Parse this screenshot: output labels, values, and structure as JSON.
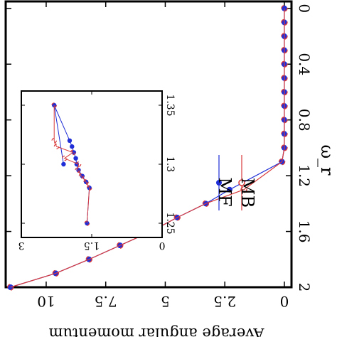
{
  "chart_data": [
    {
      "type": "scatter",
      "title": "",
      "xlabel": "ω_r",
      "ylabel": "Average angular momentum",
      "xlim": [
        -0.05,
        2.0
      ],
      "ylim": [
        -0.3,
        11.7
      ],
      "x_ticks": [
        "0",
        "0.4",
        "0.8",
        "1.2",
        "1.6",
        "2"
      ],
      "x_tick_values": [
        0,
        0.4,
        0.8,
        1.2,
        1.6,
        2.0
      ],
      "y_ticks": [
        "0",
        "2.5",
        "5",
        "7.5",
        "10"
      ],
      "y_tick_values": [
        0,
        2.5,
        5,
        7.5,
        10
      ],
      "grid": false,
      "legend": "lower-right",
      "series": [
        {
          "name": "MF",
          "color": "#1f2ed6",
          "marker": "half-filled circle, joined by line",
          "x": [
            0,
            0.1,
            0.2,
            0.3,
            0.4,
            0.5,
            0.6,
            0.7,
            0.8,
            0.9,
            1.0,
            1.1,
            1.3,
            1.4,
            1.5,
            1.6,
            1.7,
            1.8,
            1.9,
            2.0
          ],
          "y": [
            0,
            0,
            0,
            0,
            0,
            0,
            0,
            0,
            0,
            0,
            0,
            0.1,
            2.3,
            3.3,
            4.5,
            5.6,
            6.9,
            8.2,
            9.6,
            11.5
          ]
        },
        {
          "name": "MB",
          "color": "#d93a3a",
          "marker": "open half circle, joined by line",
          "x": [
            0,
            0.1,
            0.2,
            0.3,
            0.4,
            0.5,
            0.6,
            0.7,
            0.8,
            0.9,
            1.0,
            1.1,
            1.3,
            1.4,
            1.5,
            1.6,
            1.7,
            1.8,
            1.9,
            2.0
          ],
          "y": [
            0,
            0,
            0,
            0,
            0,
            0,
            0,
            0,
            0,
            0,
            0,
            0.1,
            1.7,
            3.3,
            4.5,
            5.6,
            6.9,
            8.2,
            9.6,
            11.5
          ]
        }
      ]
    },
    {
      "type": "scatter",
      "title": "",
      "xlabel": "",
      "ylabel": "",
      "xlim": [
        1.245,
        1.36
      ],
      "ylim": [
        0,
        3
      ],
      "x_ticks": [
        "1.25",
        "1.3",
        "1.35"
      ],
      "x_tick_values": [
        1.25,
        1.3,
        1.35
      ],
      "y_ticks": [
        "0",
        "1.5",
        "3"
      ],
      "y_tick_values": [
        0,
        1.5,
        3
      ],
      "grid": false,
      "series": [
        {
          "name": "MF",
          "color": "#1f2ed6",
          "x": [
            1.25,
            1.28,
            1.285,
            1.29,
            1.295,
            1.3,
            1.305,
            1.31,
            1.315,
            1.32,
            1.35,
            1.3
          ],
          "y": [
            1.6,
            1.55,
            1.62,
            1.7,
            1.78,
            1.82,
            1.84,
            1.88,
            1.92,
            1.97,
            2.3,
            2.1
          ]
        },
        {
          "name": "MB",
          "color": "#d93a3a",
          "x": [
            1.25,
            1.28,
            1.285,
            1.29,
            1.295,
            1.3,
            1.305,
            1.31,
            1.315,
            1.32,
            1.35
          ],
          "y": [
            1.6,
            1.55,
            1.62,
            1.72,
            1.8,
            1.78,
            2.08,
            1.9,
            2.25,
            2.3,
            2.3
          ]
        }
      ]
    }
  ]
}
